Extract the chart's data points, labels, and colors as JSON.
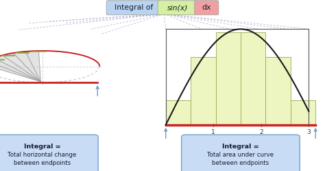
{
  "title_parts": [
    "Integral of",
    "sin(x)",
    "dx"
  ],
  "title_colors": [
    "#b8d4f0",
    "#d4f0a0",
    "#f0a0a0"
  ],
  "title_text_color": "#1a1a2e",
  "bg_color": "#ffffff",
  "left_box_text_bold": "Integral =",
  "left_box_text_normal": "Total horizontal change\nbetween endpoints",
  "right_box_text_bold": "Integral =",
  "right_box_text_normal": "Total area under curve\nbetween endpoints",
  "box_fill": "#c8ddf5",
  "box_edge": "#6699cc",
  "arrow_color": "#6699cc",
  "circle_color": "#bbbbbb",
  "fan_color": "#cccccc",
  "curve_color_left": "#cc2222",
  "curve_color_right": "#1a1a1a",
  "bar_fill": "#edf5c0",
  "bar_edge": "#99aa55",
  "red_baseline": "#cc2222",
  "green_line": "#88aa33",
  "dashed_color": "#aaaacc",
  "axis_color": "#555555",
  "x_ticks_right": [
    1,
    2,
    3
  ],
  "n_bars": 6,
  "x_max": 3.0
}
